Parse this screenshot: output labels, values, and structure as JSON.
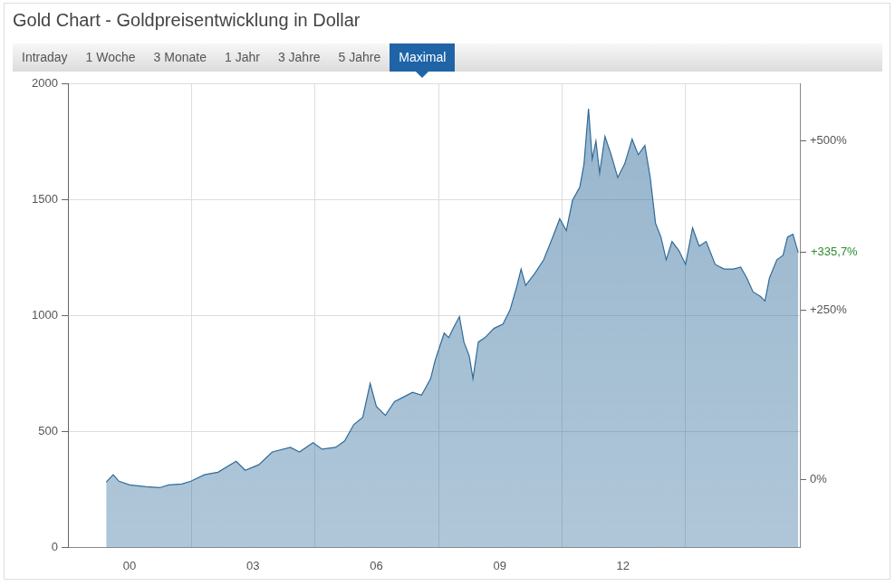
{
  "tabs": {
    "items": [
      "Intraday",
      "1 Woche",
      "3 Monate",
      "1 Jahr",
      "3 Jahre",
      "5 Jahre",
      "Maximal"
    ],
    "active": "Maximal"
  },
  "chart_data": {
    "type": "area",
    "title": "Gold Chart - Goldpreisentwicklung in Dollar",
    "x": [
      1999.43,
      1999.6,
      1999.74,
      2000.0,
      2000.4,
      2000.73,
      2000.95,
      2001.27,
      2001.49,
      2001.82,
      2002.15,
      2002.59,
      2002.81,
      2003.14,
      2003.47,
      2003.91,
      2004.13,
      2004.46,
      2004.68,
      2005.01,
      2005.23,
      2005.45,
      2005.67,
      2005.85,
      2006.0,
      2006.22,
      2006.44,
      2006.66,
      2006.88,
      2007.1,
      2007.32,
      2007.43,
      2007.65,
      2007.76,
      2007.87,
      2008.02,
      2008.13,
      2008.26,
      2008.35,
      2008.48,
      2008.64,
      2008.86,
      2009.08,
      2009.25,
      2009.41,
      2009.52,
      2009.63,
      2009.85,
      2010.07,
      2010.29,
      2010.46,
      2010.62,
      2010.77,
      2010.95,
      2011.05,
      2011.16,
      2011.25,
      2011.34,
      2011.43,
      2011.56,
      2011.71,
      2011.87,
      2012.04,
      2012.22,
      2012.37,
      2012.53,
      2012.66,
      2012.79,
      2012.92,
      2013.05,
      2013.19,
      2013.36,
      2013.52,
      2013.69,
      2013.85,
      2014.02,
      2014.24,
      2014.46,
      2014.68,
      2014.86,
      2015.01,
      2015.16,
      2015.34,
      2015.45,
      2015.56,
      2015.74,
      2015.89,
      2016.0,
      2016.13,
      2016.26
    ],
    "values": [
      280,
      312,
      284,
      268,
      260,
      256,
      268,
      272,
      284,
      312,
      323,
      370,
      331,
      355,
      410,
      430,
      410,
      450,
      422,
      430,
      458,
      528,
      560,
      706,
      607,
      568,
      627,
      647,
      667,
      655,
      726,
      805,
      923,
      903,
      943,
      994,
      884,
      824,
      726,
      884,
      903,
      943,
      962,
      1022,
      1120,
      1199,
      1128,
      1179,
      1239,
      1337,
      1416,
      1365,
      1495,
      1554,
      1653,
      1890,
      1673,
      1751,
      1613,
      1771,
      1692,
      1594,
      1653,
      1759,
      1692,
      1732,
      1594,
      1396,
      1337,
      1239,
      1318,
      1278,
      1219,
      1377,
      1298,
      1318,
      1219,
      1199,
      1199,
      1207,
      1160,
      1101,
      1081,
      1061,
      1160,
      1239,
      1258,
      1337,
      1349,
      1270
    ],
    "color": "#2f6b9a",
    "xlim": [
      1998.5,
      2016.3
    ],
    "xticks": [
      {
        "value": 2000,
        "label": "00"
      },
      {
        "value": 2003,
        "label": "03"
      },
      {
        "value": 2006,
        "label": "06"
      },
      {
        "value": 2009,
        "label": "09"
      },
      {
        "value": 2012,
        "label": "12"
      }
    ],
    "ylim": [
      0,
      2000
    ],
    "yticks": [
      0,
      500,
      1000,
      1500,
      2000
    ],
    "y2lim": [
      -100,
      584.9
    ],
    "y2ticks": [
      {
        "value": 0,
        "label": "0%"
      },
      {
        "value": 250,
        "label": "+250%"
      },
      {
        "value": 500,
        "label": "+500%"
      }
    ],
    "annotations": [
      {
        "text": "+335,7%",
        "value": 335.7,
        "axis": "y2",
        "color": "#2e8b2e"
      }
    ],
    "grid": true
  }
}
